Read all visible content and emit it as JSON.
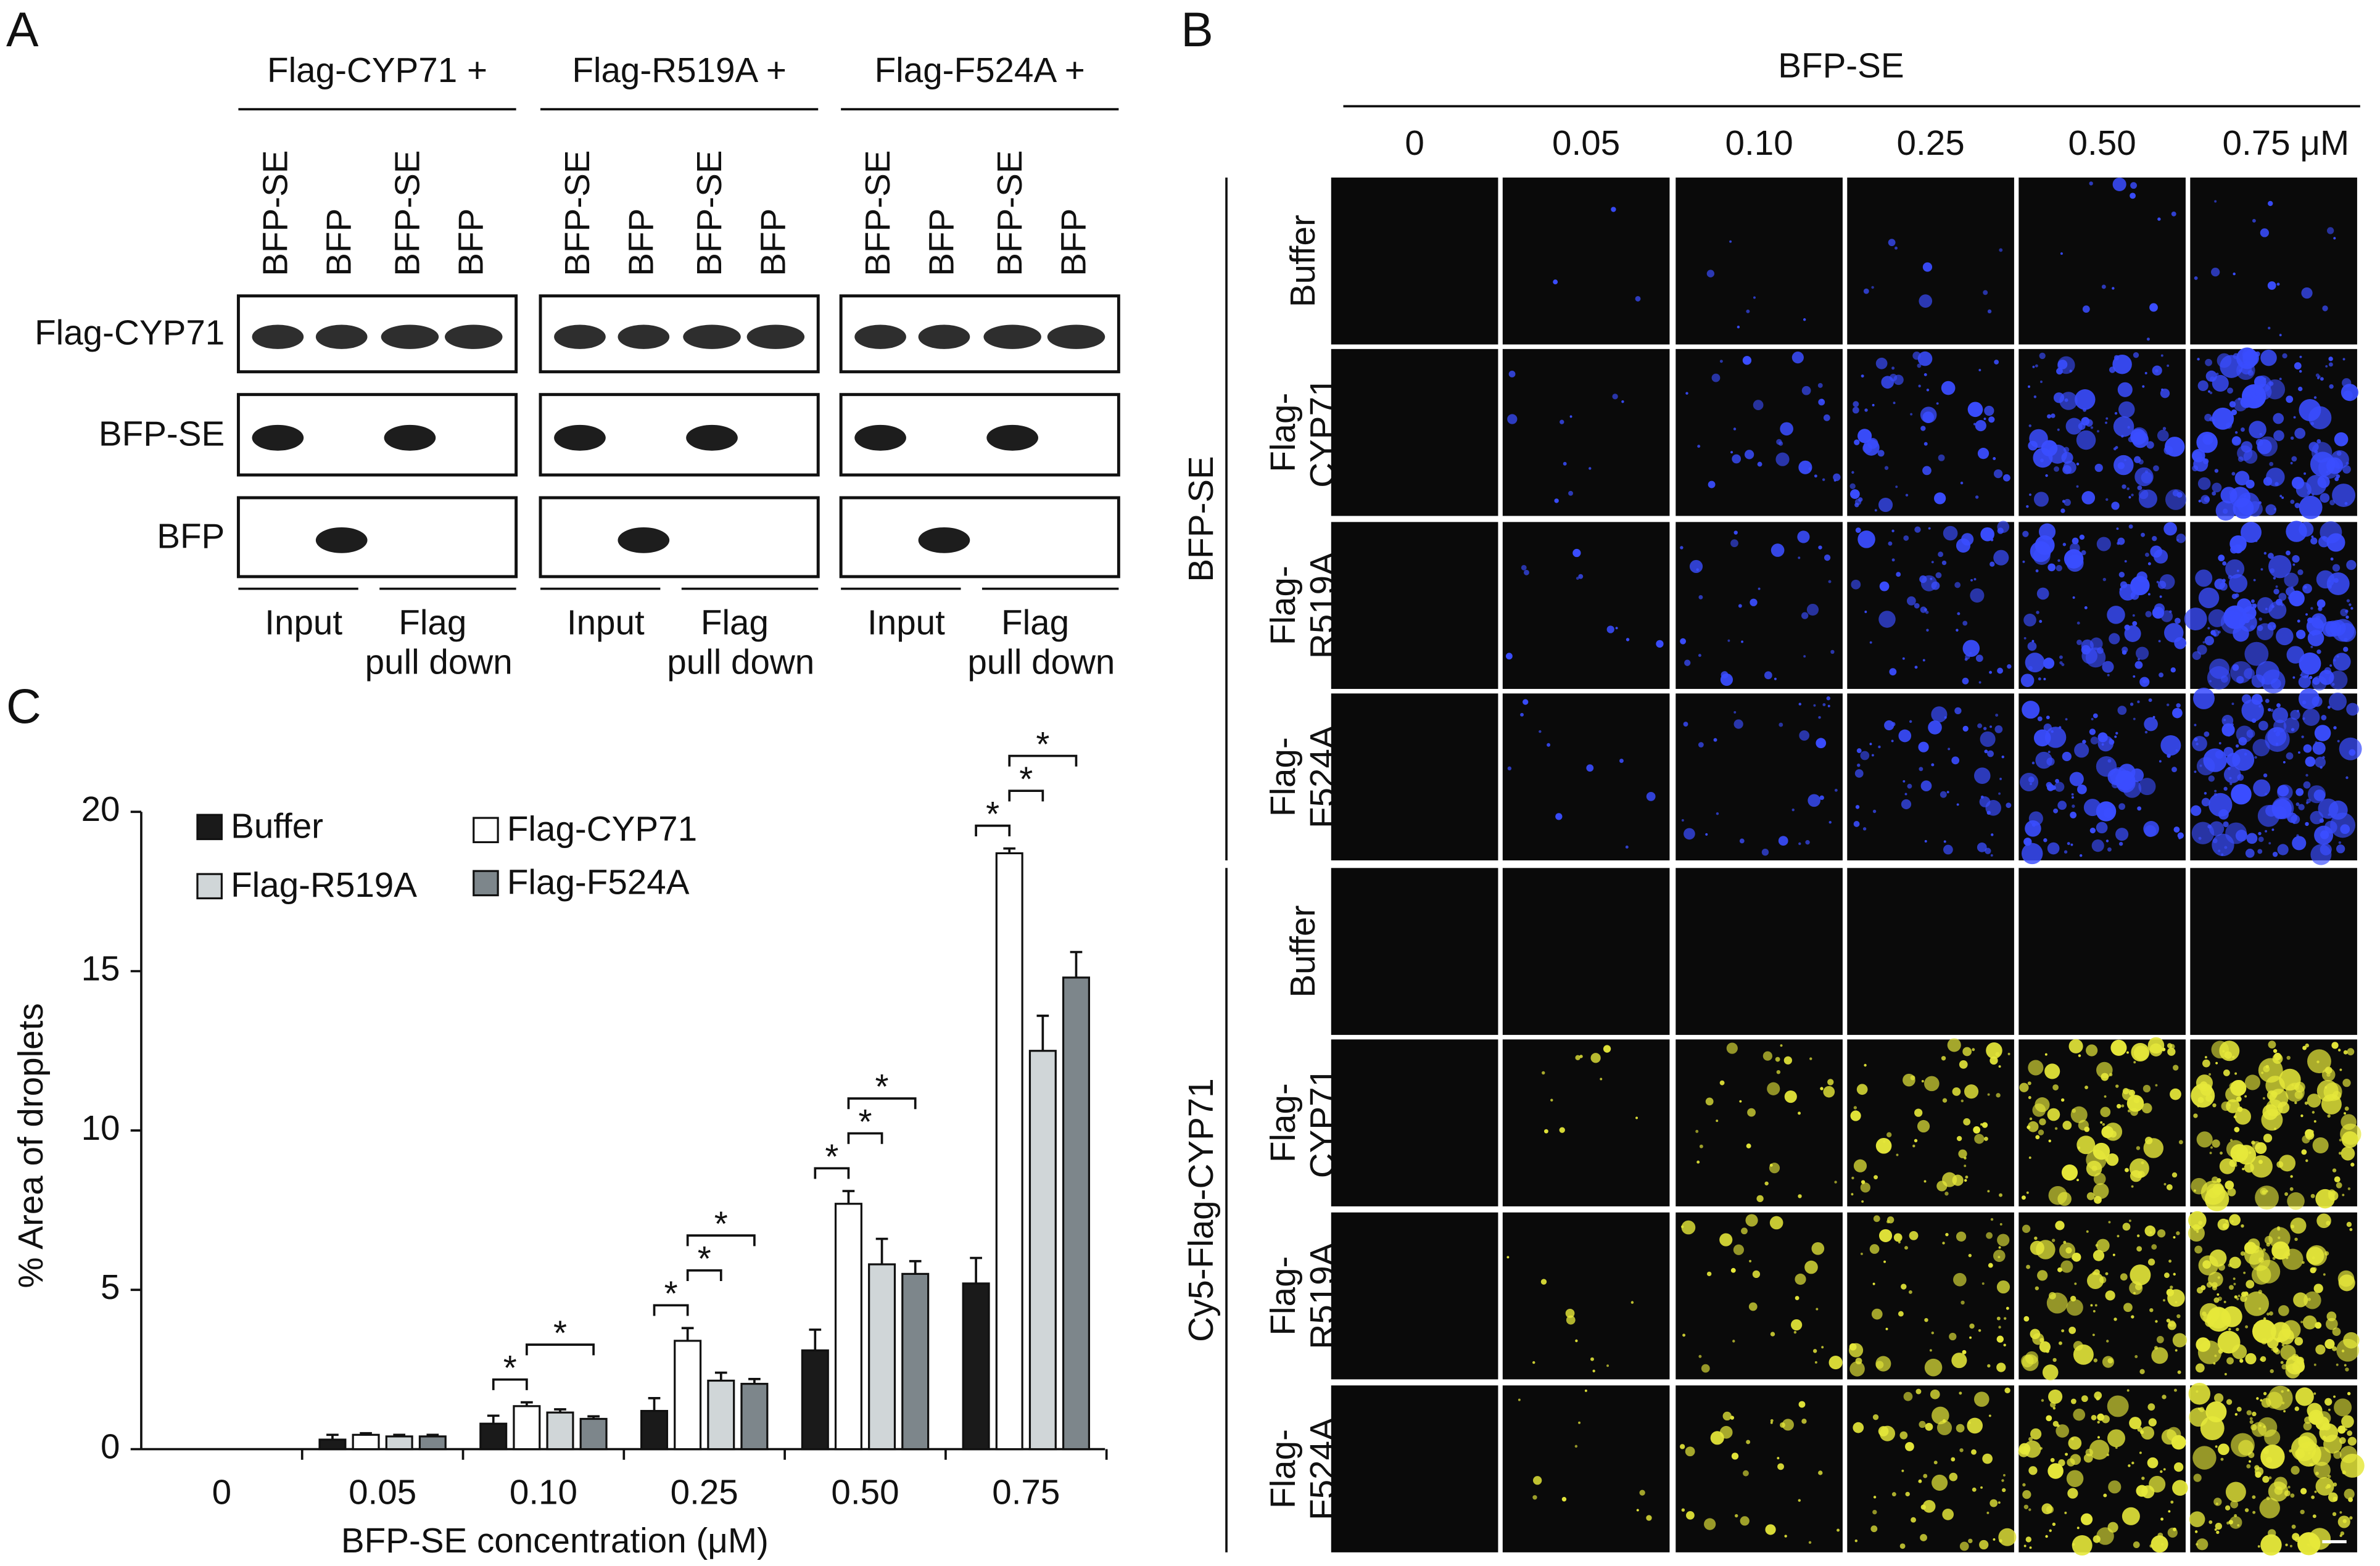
{
  "panel_a": {
    "letter": "A",
    "groups": [
      "Flag-CYP71 +",
      "Flag-R519A +",
      "Flag-F524A +"
    ],
    "lanes": [
      "BFP-SE",
      "BFP",
      "BFP-SE",
      "BFP"
    ],
    "rows": [
      "Flag-CYP71",
      "BFP-SE",
      "BFP"
    ],
    "input": "Input",
    "pulldown": [
      "Flag",
      "pull down"
    ]
  },
  "panel_b": {
    "letter": "B",
    "header": "BFP-SE",
    "columns": [
      "0",
      "0.05",
      "0.10",
      "0.25",
      "0.50",
      "0.75 μM"
    ],
    "groups": [
      {
        "label": "BFP-SE",
        "rows": [
          [
            "Buffer"
          ],
          [
            "Flag-",
            "CYP71"
          ],
          [
            "Flag-",
            "R519A"
          ],
          [
            "Flag-",
            "F524A"
          ]
        ]
      },
      {
        "label": "Cy5-Flag-CYP71",
        "rows": [
          [
            "Buffer"
          ],
          [
            "Flag-",
            "CYP71"
          ],
          [
            "Flag-",
            "R519A"
          ],
          [
            "Flag-",
            "F524A"
          ]
        ]
      }
    ]
  },
  "chart_data": {
    "type": "bar",
    "panel_letter": "C",
    "x_label": "BFP-SE concentration (μM)",
    "y_label": "% Area of droplets",
    "categories": [
      "0",
      "0.05",
      "0.10",
      "0.25",
      "0.50",
      "0.75"
    ],
    "series": [
      {
        "name": "Buffer",
        "color": "#1a1a1a",
        "values": [
          0,
          0.3,
          0.8,
          1.2,
          3.1,
          5.2
        ],
        "errors": [
          0,
          0.15,
          0.25,
          0.4,
          0.65,
          0.8
        ]
      },
      {
        "name": "Flag-CYP71",
        "color": "#ffffff",
        "values": [
          0,
          0.45,
          1.35,
          3.4,
          7.7,
          18.7
        ],
        "errors": [
          0,
          0.05,
          0.12,
          0.4,
          0.4,
          0.15
        ]
      },
      {
        "name": "Flag-R519A",
        "color": "#d0d6d8",
        "values": [
          0,
          0.4,
          1.15,
          2.15,
          5.8,
          12.5
        ],
        "errors": [
          0,
          0.05,
          0.1,
          0.25,
          0.8,
          1.1
        ]
      },
      {
        "name": "Flag-F524A",
        "color": "#7d868b",
        "values": [
          0,
          0.4,
          0.95,
          2.05,
          5.5,
          14.8
        ],
        "errors": [
          0,
          0.05,
          0.08,
          0.15,
          0.4,
          0.8
        ]
      }
    ],
    "significance_label": "*",
    "ylim": [
      0,
      20
    ],
    "yticks": [
      0,
      5,
      10,
      15,
      20
    ]
  }
}
